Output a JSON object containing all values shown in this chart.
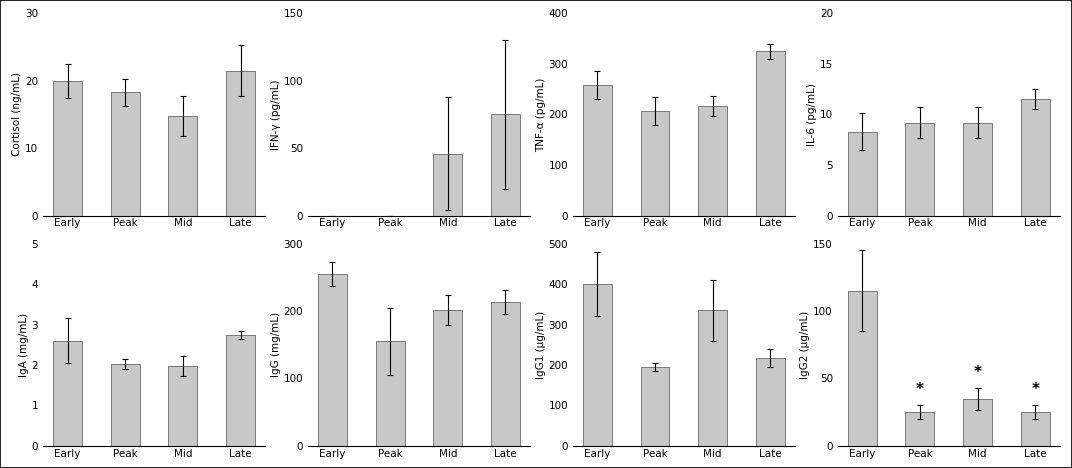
{
  "subplots": [
    {
      "label": "Cortisol (ng/mL)",
      "values": [
        20.0,
        18.3,
        14.8,
        21.5
      ],
      "errors": [
        2.5,
        2.0,
        3.0,
        3.8
      ],
      "ylim": [
        0,
        30
      ],
      "yticks": [
        0,
        10,
        20,
        30
      ],
      "stars": []
    },
    {
      "label": "IFN-γ (pg/mL)",
      "values": [
        0,
        0,
        46,
        75
      ],
      "errors": [
        0,
        0,
        42,
        55
      ],
      "ylim": [
        0,
        150
      ],
      "yticks": [
        0,
        50,
        100,
        150
      ],
      "stars": []
    },
    {
      "label": "TNF-α (pg/mL)",
      "values": [
        258,
        207,
        216,
        325
      ],
      "errors": [
        28,
        28,
        20,
        15
      ],
      "ylim": [
        0,
        400
      ],
      "yticks": [
        0,
        100,
        200,
        300,
        400
      ],
      "stars": []
    },
    {
      "label": "IL-6 (pg/mL)",
      "values": [
        8.3,
        9.2,
        9.2,
        11.5
      ],
      "errors": [
        1.8,
        1.5,
        1.5,
        1.0
      ],
      "ylim": [
        0,
        20
      ],
      "yticks": [
        0,
        5,
        10,
        15,
        20
      ],
      "stars": []
    },
    {
      "label": "IgA (mg/mL)",
      "values": [
        2.6,
        2.02,
        1.97,
        2.73
      ],
      "errors": [
        0.55,
        0.12,
        0.25,
        0.1
      ],
      "ylim": [
        0,
        5
      ],
      "yticks": [
        0,
        1,
        2,
        3,
        4,
        5
      ],
      "stars": []
    },
    {
      "label": "IgG (mg/mL)",
      "values": [
        255,
        155,
        202,
        213
      ],
      "errors": [
        18,
        50,
        22,
        18
      ],
      "ylim": [
        0,
        300
      ],
      "yticks": [
        0,
        100,
        200,
        300
      ],
      "stars": []
    },
    {
      "label": "IgG1 (μg/mL)",
      "values": [
        400,
        195,
        335,
        218
      ],
      "errors": [
        80,
        10,
        75,
        22
      ],
      "ylim": [
        0,
        500
      ],
      "yticks": [
        0,
        100,
        200,
        300,
        400,
        500
      ],
      "stars": []
    },
    {
      "label": "IgG2 (μg/mL)",
      "values": [
        115,
        25,
        35,
        25
      ],
      "errors": [
        30,
        5,
        8,
        5
      ],
      "ylim": [
        0,
        150
      ],
      "yticks": [
        0,
        50,
        100,
        150
      ],
      "stars": [
        1,
        2,
        3
      ]
    }
  ],
  "categories": [
    "Early",
    "Peak",
    "Mid",
    "Late"
  ],
  "bar_color": "#c8c8c8",
  "bar_edgecolor": "#666666",
  "bar_width": 0.5,
  "error_capsize": 2.5,
  "error_color": "black",
  "error_linewidth": 0.8,
  "background_color": "#ffffff",
  "star_fontsize": 11,
  "tick_fontsize": 7.5,
  "ylabel_fontsize": 7.5
}
